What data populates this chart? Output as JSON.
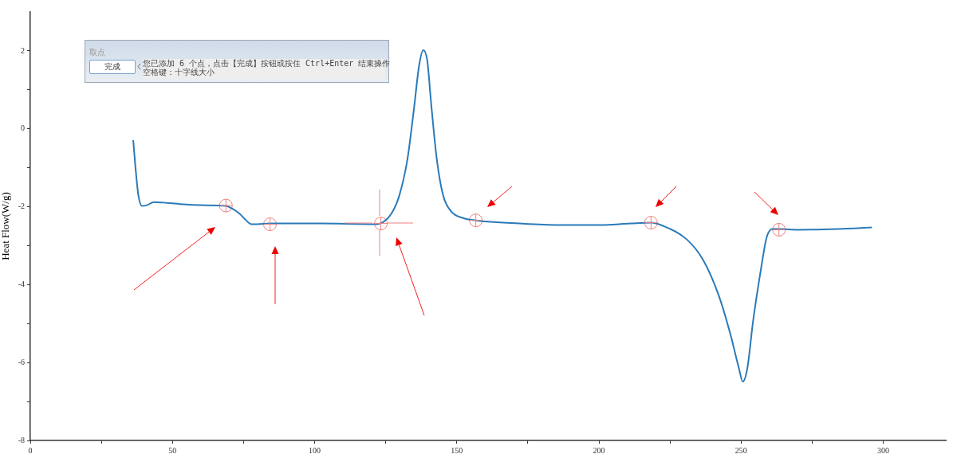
{
  "chart_data": {
    "type": "line",
    "ylabel": "Heat Flow(W/g)",
    "xlim": [
      0,
      322
    ],
    "ylim": [
      -8,
      3
    ],
    "xticks": [
      0,
      {
        "value": 25,
        "label": null
      },
      50,
      {
        "value": 75,
        "label": null
      },
      100,
      {
        "value": 125,
        "label": null
      },
      150,
      {
        "value": 175,
        "label": null
      },
      200,
      {
        "value": 225,
        "label": null
      },
      250,
      {
        "value": 275,
        "label": null
      },
      300
    ],
    "yticks": [
      -8,
      {
        "value": -7,
        "label": null
      },
      -6,
      {
        "value": -5,
        "label": null
      },
      -4,
      {
        "value": -3,
        "label": null
      },
      -2,
      {
        "value": -1,
        "label": null
      },
      0,
      {
        "value": 1,
        "label": null
      },
      2
    ],
    "grid": false,
    "legend": false,
    "marker": "none",
    "line_style": "solid",
    "annotations": [
      "取点",
      "完成",
      "您已添加 6 个点，点击【完成】按钮或按住 Ctrl+Enter 结束操作",
      "空格键：十字线大小"
    ],
    "series": [
      {
        "color": "#2a7ab9",
        "x": [
          36.2,
          37,
          38,
          39.3,
          41,
          43.5,
          48,
          53.9,
          60,
          68.8,
          71,
          73.6,
          75.5,
          77.8,
          79.8,
          84.3,
          101.7,
          121.3,
          124.2,
          127,
          129.8,
          132.6,
          134.8,
          136.8,
          138.2,
          139.6,
          141,
          143,
          145.2,
          148,
          152.2,
          156.7,
          171.9,
          186,
          200,
          211.2,
          218.3,
          222.5,
          230.9,
          236.5,
          242.1,
          246.3,
          249.2,
          250.6,
          252.2,
          254.2,
          257,
          259,
          261,
          263.2,
          270.2,
          284.3,
          296
        ],
        "values": [
          -0.29,
          -1.0,
          -1.7,
          -1.98,
          -1.96,
          -1.88,
          -1.9,
          -1.94,
          -1.96,
          -1.98,
          -2.05,
          -2.18,
          -2.32,
          -2.45,
          -2.45,
          -2.43,
          -2.43,
          -2.45,
          -2.39,
          -2.18,
          -1.71,
          -0.8,
          0.43,
          1.65,
          2.02,
          1.76,
          0.63,
          -0.8,
          -1.71,
          -2.12,
          -2.29,
          -2.35,
          -2.43,
          -2.47,
          -2.47,
          -2.43,
          -2.41,
          -2.49,
          -2.84,
          -3.35,
          -4.27,
          -5.29,
          -6.14,
          -6.49,
          -6.14,
          -4.94,
          -3.59,
          -2.78,
          -2.57,
          -2.57,
          -2.59,
          -2.57,
          -2.53
        ]
      },
      {
        "type": "scatter",
        "color": "#f08080",
        "marker": "circle",
        "x": [
          68.8,
          84.3,
          123.3,
          156.7,
          218.3,
          263.3
        ],
        "values": [
          -1.97,
          -2.45,
          -2.43,
          -2.35,
          -2.41,
          -2.59
        ]
      }
    ]
  }
}
